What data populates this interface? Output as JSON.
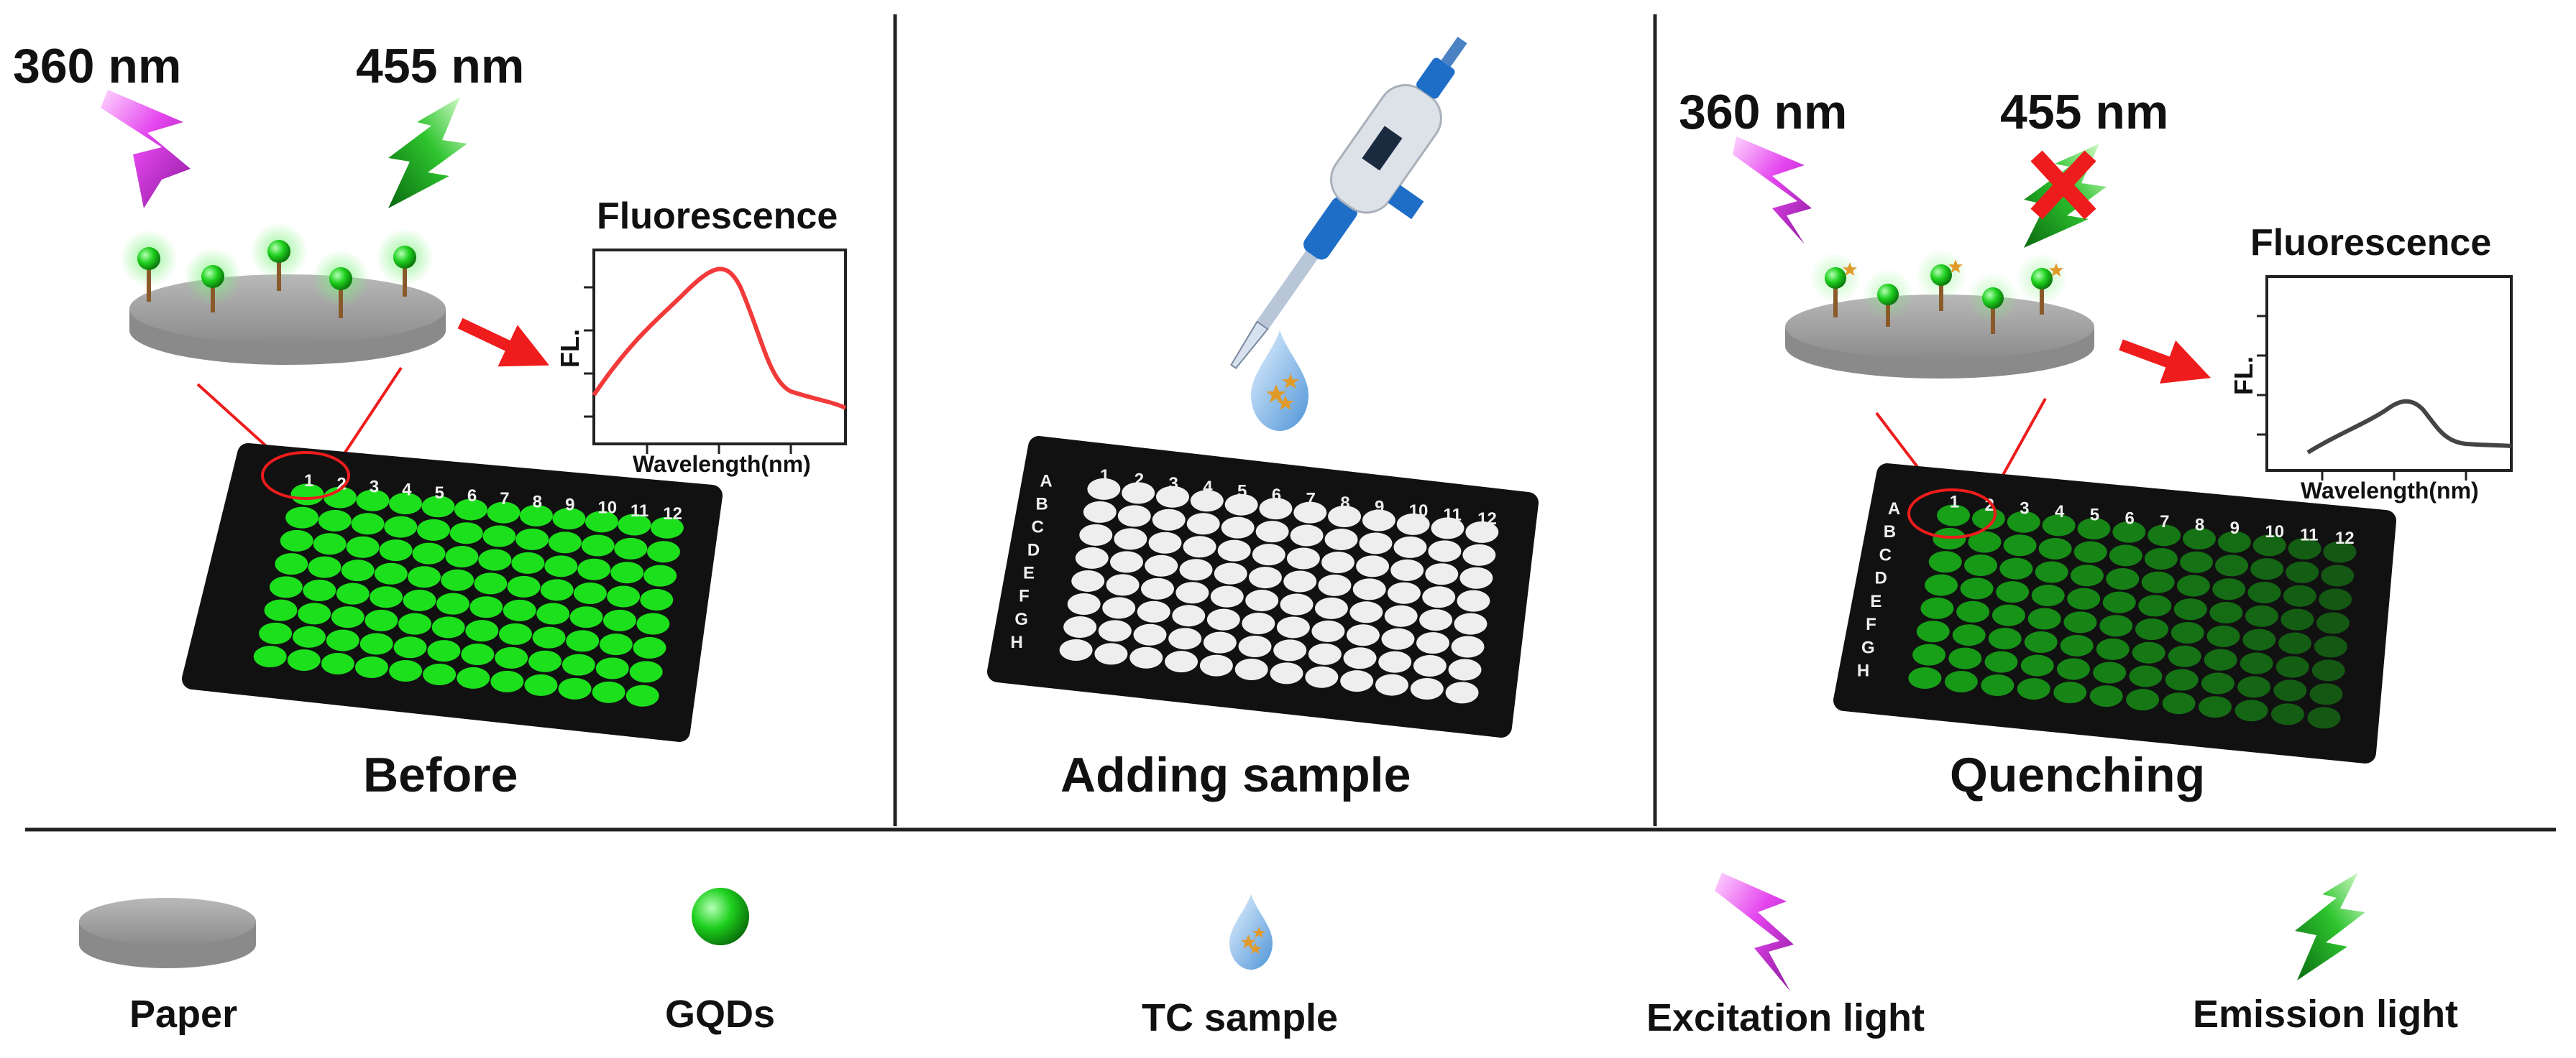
{
  "panels": [
    {
      "caption": "Before",
      "excitation_label": "360 nm",
      "emission_label": "455 nm",
      "fluorescence": {
        "title": "Fluorescence",
        "ylabel": "FL.",
        "xlabel": "Wavelength(nm)",
        "curve_color": "#f23a3a",
        "intensity": "high"
      },
      "plate_well_color": "#1de01d"
    },
    {
      "caption": "Adding sample",
      "plate_well_color": "#eeeeee"
    },
    {
      "caption": "Quenching",
      "excitation_label": "360 nm",
      "emission_label": "455 nm",
      "emission_blocked": true,
      "fluorescence": {
        "title": "Fluorescence",
        "ylabel": "FL.",
        "xlabel": "Wavelength(nm)",
        "curve_color": "#444444",
        "intensity": "low"
      },
      "plate_well_color": "#18a018"
    }
  ],
  "plate": {
    "columns": [
      "1",
      "2",
      "3",
      "4",
      "5",
      "6",
      "7",
      "8",
      "9",
      "10",
      "11",
      "12"
    ],
    "rows": [
      "A",
      "B",
      "C",
      "D",
      "E",
      "F",
      "G",
      "H"
    ]
  },
  "legend": [
    {
      "label": "Paper",
      "icon": "paper-disk-icon"
    },
    {
      "label": "GQDs",
      "icon": "gqd-sphere-icon"
    },
    {
      "label": "TC sample",
      "icon": "sample-droplet-icon"
    },
    {
      "label": "Excitation light",
      "icon": "excitation-bolt-icon"
    },
    {
      "label": "Emission light",
      "icon": "emission-bolt-icon"
    }
  ],
  "colors": {
    "excitation": "#e040e8",
    "emission": "#22b422",
    "arrow": "#ee1c1c",
    "gqd": "#1ccc1c",
    "star": "#e09a2a",
    "droplet": "#7ab6e8"
  }
}
